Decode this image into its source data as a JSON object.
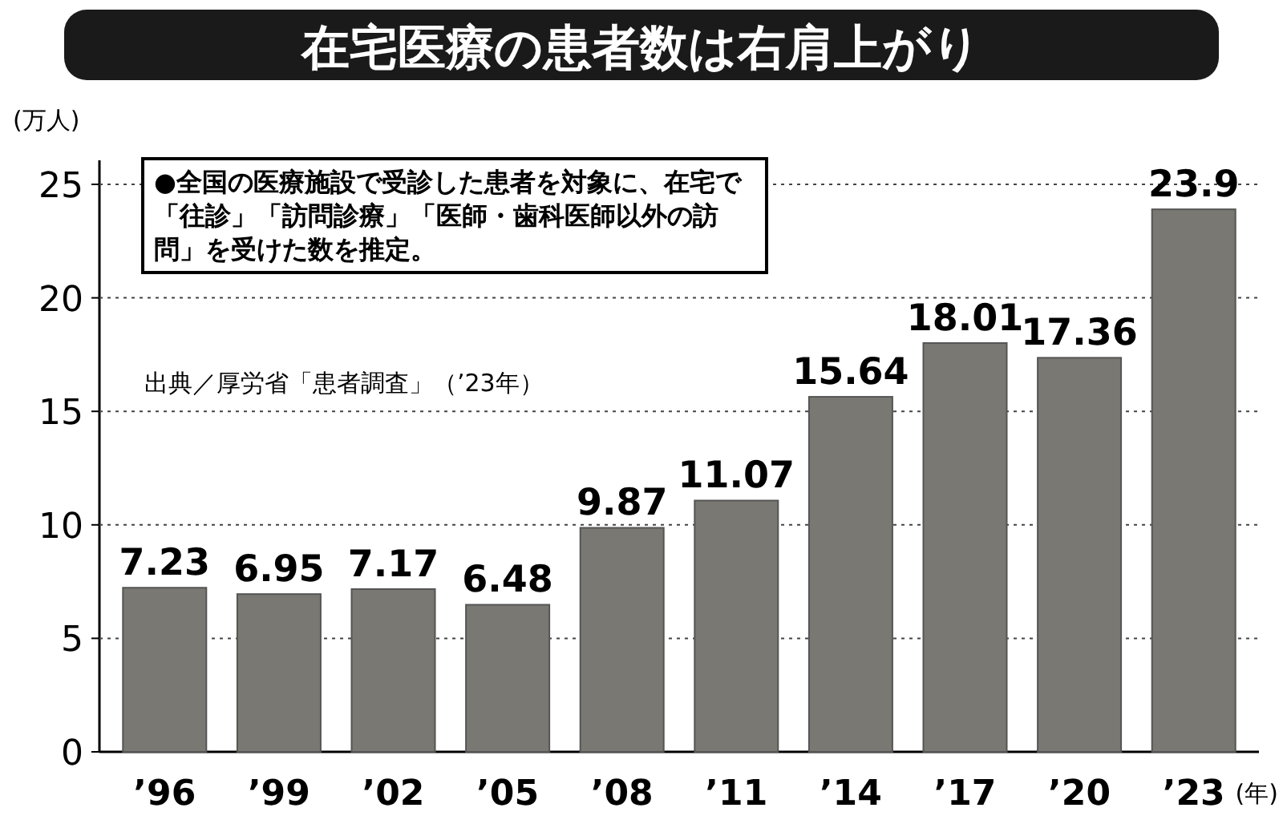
{
  "chart_data": {
    "type": "bar",
    "title": "在宅医療の患者数は右肩上がり",
    "ylabel": "(万人)",
    "xlabel": "(年)",
    "categories": [
      "’96",
      "’99",
      "’02",
      "’05",
      "’08",
      "’11",
      "’14",
      "’17",
      "’20",
      "’23"
    ],
    "values": [
      7.23,
      6.95,
      7.17,
      6.48,
      9.87,
      11.07,
      15.64,
      18.01,
      17.36,
      23.9
    ],
    "color": "#7a7873",
    "ylim": [
      0,
      25
    ],
    "yticks": [
      0,
      5,
      10,
      15,
      20,
      25
    ],
    "grid": "y",
    "data_labels": true,
    "annotations": [
      "●全国の医療施設で受診した患者を対象に、在宅で「往診」「訪問診療」「医師・歯科医師以外の訪問」を受けた数を推定。",
      "出典／厚労省「患者調査」（’23年）"
    ]
  }
}
